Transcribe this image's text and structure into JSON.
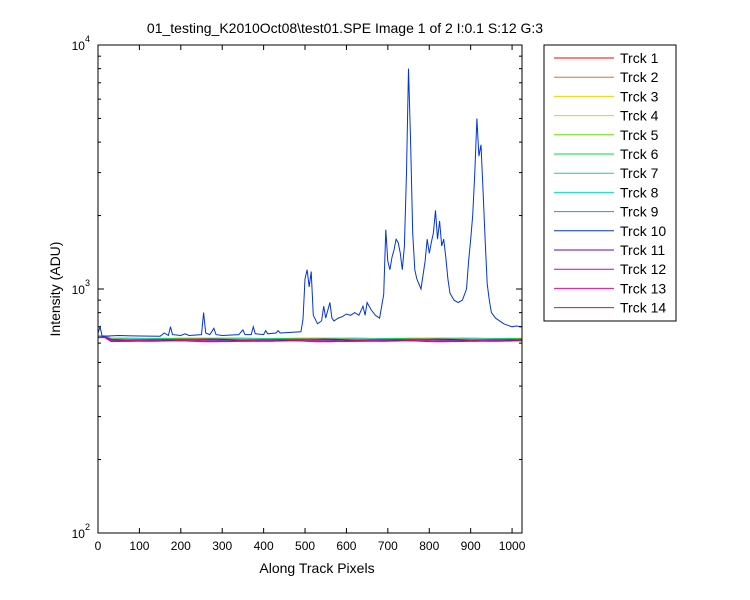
{
  "chart_data": {
    "type": "line",
    "title": "01_testing_K2010Oct08\\test01.SPE  Image 1 of 2  I:0.1  S:12  G:3",
    "xlabel": "Along Track Pixels",
    "ylabel": "Intensity (ADU)",
    "xlim": [
      0,
      1024
    ],
    "ylim": [
      100,
      10000
    ],
    "yscale": "log",
    "x_ticks": [
      "0",
      "100",
      "200",
      "300",
      "400",
      "500",
      "600",
      "700",
      "800",
      "900",
      "1000"
    ],
    "y_ticks": [
      {
        "base": "10",
        "exp": "2"
      },
      {
        "base": "10",
        "exp": "3"
      },
      {
        "base": "10",
        "exp": "4"
      }
    ],
    "grid": false,
    "legend_position": "outside-right",
    "series": [
      {
        "name": "Trck 1",
        "color": "#ff0000",
        "baseline": 620
      },
      {
        "name": "Trck 2",
        "color": "#ff6600",
        "baseline": 622
      },
      {
        "name": "Trck 3",
        "color": "#ffcc00",
        "baseline": 625
      },
      {
        "name": "Trck 4",
        "color": "#ccdd00",
        "baseline": 624
      },
      {
        "name": "Trck 5",
        "color": "#66dd00",
        "baseline": 623
      },
      {
        "name": "Trck 6",
        "color": "#00dd33",
        "baseline": 621
      },
      {
        "name": "Trck 7",
        "color": "#00dd88",
        "baseline": 620
      },
      {
        "name": "Trck 8",
        "color": "#00ddcc",
        "baseline": 619
      },
      {
        "name": "Trck 9",
        "color": "#00aacc",
        "baseline": 618
      },
      {
        "name": "Trck 10",
        "color": "#0033dd",
        "baseline": 640,
        "points": [
          [
            0,
            660
          ],
          [
            5,
            700
          ],
          [
            10,
            640
          ],
          [
            50,
            645
          ],
          [
            100,
            642
          ],
          [
            150,
            640
          ],
          [
            160,
            660
          ],
          [
            170,
            645
          ],
          [
            175,
            700
          ],
          [
            180,
            650
          ],
          [
            200,
            645
          ],
          [
            210,
            655
          ],
          [
            220,
            645
          ],
          [
            250,
            650
          ],
          [
            255,
            800
          ],
          [
            260,
            660
          ],
          [
            270,
            650
          ],
          [
            280,
            690
          ],
          [
            285,
            650
          ],
          [
            300,
            645
          ],
          [
            340,
            650
          ],
          [
            350,
            680
          ],
          [
            355,
            650
          ],
          [
            370,
            650
          ],
          [
            375,
            700
          ],
          [
            380,
            655
          ],
          [
            400,
            650
          ],
          [
            405,
            675
          ],
          [
            410,
            655
          ],
          [
            430,
            660
          ],
          [
            435,
            675
          ],
          [
            440,
            660
          ],
          [
            450,
            662
          ],
          [
            490,
            668
          ],
          [
            495,
            750
          ],
          [
            500,
            1100
          ],
          [
            505,
            1200
          ],
          [
            510,
            1020
          ],
          [
            515,
            1180
          ],
          [
            520,
            780
          ],
          [
            530,
            720
          ],
          [
            540,
            740
          ],
          [
            545,
            850
          ],
          [
            550,
            760
          ],
          [
            560,
            880
          ],
          [
            565,
            760
          ],
          [
            570,
            740
          ],
          [
            580,
            760
          ],
          [
            590,
            770
          ],
          [
            600,
            790
          ],
          [
            610,
            780
          ],
          [
            620,
            800
          ],
          [
            630,
            780
          ],
          [
            640,
            850
          ],
          [
            645,
            780
          ],
          [
            650,
            880
          ],
          [
            660,
            820
          ],
          [
            670,
            780
          ],
          [
            680,
            760
          ],
          [
            690,
            950
          ],
          [
            695,
            1750
          ],
          [
            700,
            1300
          ],
          [
            705,
            1200
          ],
          [
            710,
            1350
          ],
          [
            715,
            1450
          ],
          [
            720,
            1600
          ],
          [
            725,
            1550
          ],
          [
            730,
            1400
          ],
          [
            735,
            1200
          ],
          [
            740,
            1500
          ],
          [
            745,
            3000
          ],
          [
            750,
            8000
          ],
          [
            755,
            4000
          ],
          [
            760,
            1700
          ],
          [
            765,
            1200
          ],
          [
            770,
            1100
          ],
          [
            780,
            1000
          ],
          [
            790,
            1300
          ],
          [
            795,
            1600
          ],
          [
            800,
            1400
          ],
          [
            805,
            1550
          ],
          [
            810,
            1700
          ],
          [
            815,
            2100
          ],
          [
            820,
            1600
          ],
          [
            825,
            1900
          ],
          [
            830,
            1500
          ],
          [
            835,
            1600
          ],
          [
            840,
            1350
          ],
          [
            845,
            1100
          ],
          [
            850,
            960
          ],
          [
            860,
            900
          ],
          [
            870,
            880
          ],
          [
            880,
            900
          ],
          [
            890,
            1000
          ],
          [
            895,
            1300
          ],
          [
            900,
            1600
          ],
          [
            905,
            2000
          ],
          [
            910,
            3000
          ],
          [
            915,
            5000
          ],
          [
            920,
            3500
          ],
          [
            925,
            3900
          ],
          [
            930,
            2500
          ],
          [
            935,
            1600
          ],
          [
            940,
            1050
          ],
          [
            945,
            900
          ],
          [
            950,
            800
          ],
          [
            960,
            760
          ],
          [
            970,
            740
          ],
          [
            980,
            720
          ],
          [
            990,
            710
          ],
          [
            1000,
            700
          ],
          [
            1010,
            705
          ],
          [
            1024,
            700
          ]
        ]
      },
      {
        "name": "Trck 11",
        "color": "#6600cc",
        "baseline": 617
      },
      {
        "name": "Trck 12",
        "color": "#cc00dd",
        "baseline": 616
      },
      {
        "name": "Trck 13",
        "color": "#ee00aa",
        "baseline": 615
      },
      {
        "name": "Trck 14",
        "color": "#ee0066",
        "baseline": 614
      }
    ]
  }
}
